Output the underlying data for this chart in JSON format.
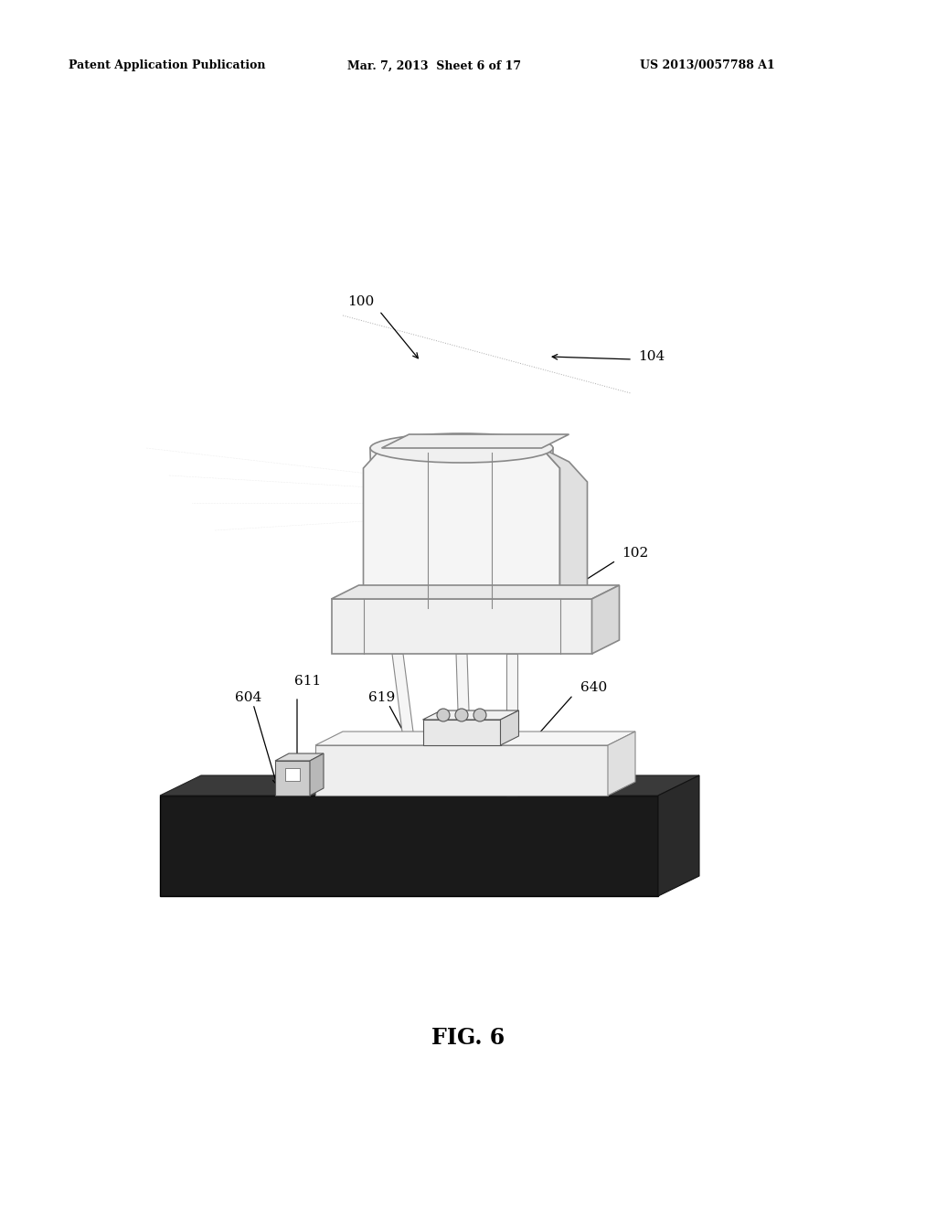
{
  "header_left": "Patent Application Publication",
  "header_mid": "Mar. 7, 2013  Sheet 6 of 17",
  "header_right": "US 2013/0057788 A1",
  "figure_label": "FIG. 6",
  "bg_color": "#ffffff",
  "outline_color": "#888888",
  "dark_outline": "#555555",
  "black": "#111111",
  "white": "#ffffff",
  "light_gray": "#dddddd",
  "mid_gray": "#bbbbbb",
  "annot_fs": 11
}
